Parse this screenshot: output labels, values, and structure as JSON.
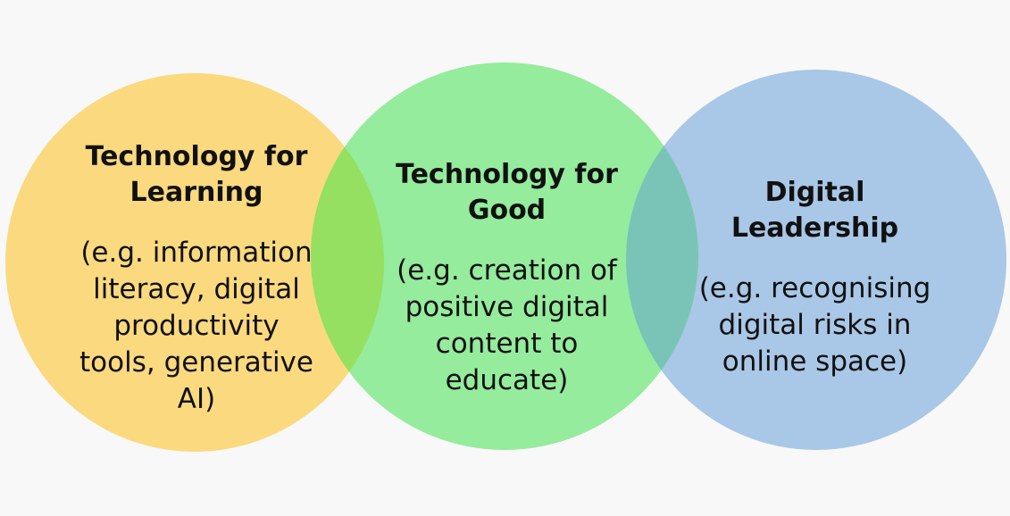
{
  "diagram": {
    "type": "venn",
    "colors": {
      "background": "#f8f8f8",
      "left_circle": "#fad97f",
      "middle_circle": "#94ec9c",
      "right_circle": "#a9c7e6",
      "overlap_left_middle": "#95e060",
      "overlap_middle_right": "#79c4b6"
    },
    "circles": [
      {
        "title": "Technology for\nLearning",
        "description": "(e.g. information\nliteracy, digital\nproductivity\ntools, generative\nAI)"
      },
      {
        "title": "Technology for\nGood",
        "description": "(e.g. creation of\npositive digital\ncontent to\neducate)"
      },
      {
        "title": "Digital\nLeadership",
        "description": "(e.g. recognising\ndigital risks in\nonline space)"
      }
    ]
  }
}
